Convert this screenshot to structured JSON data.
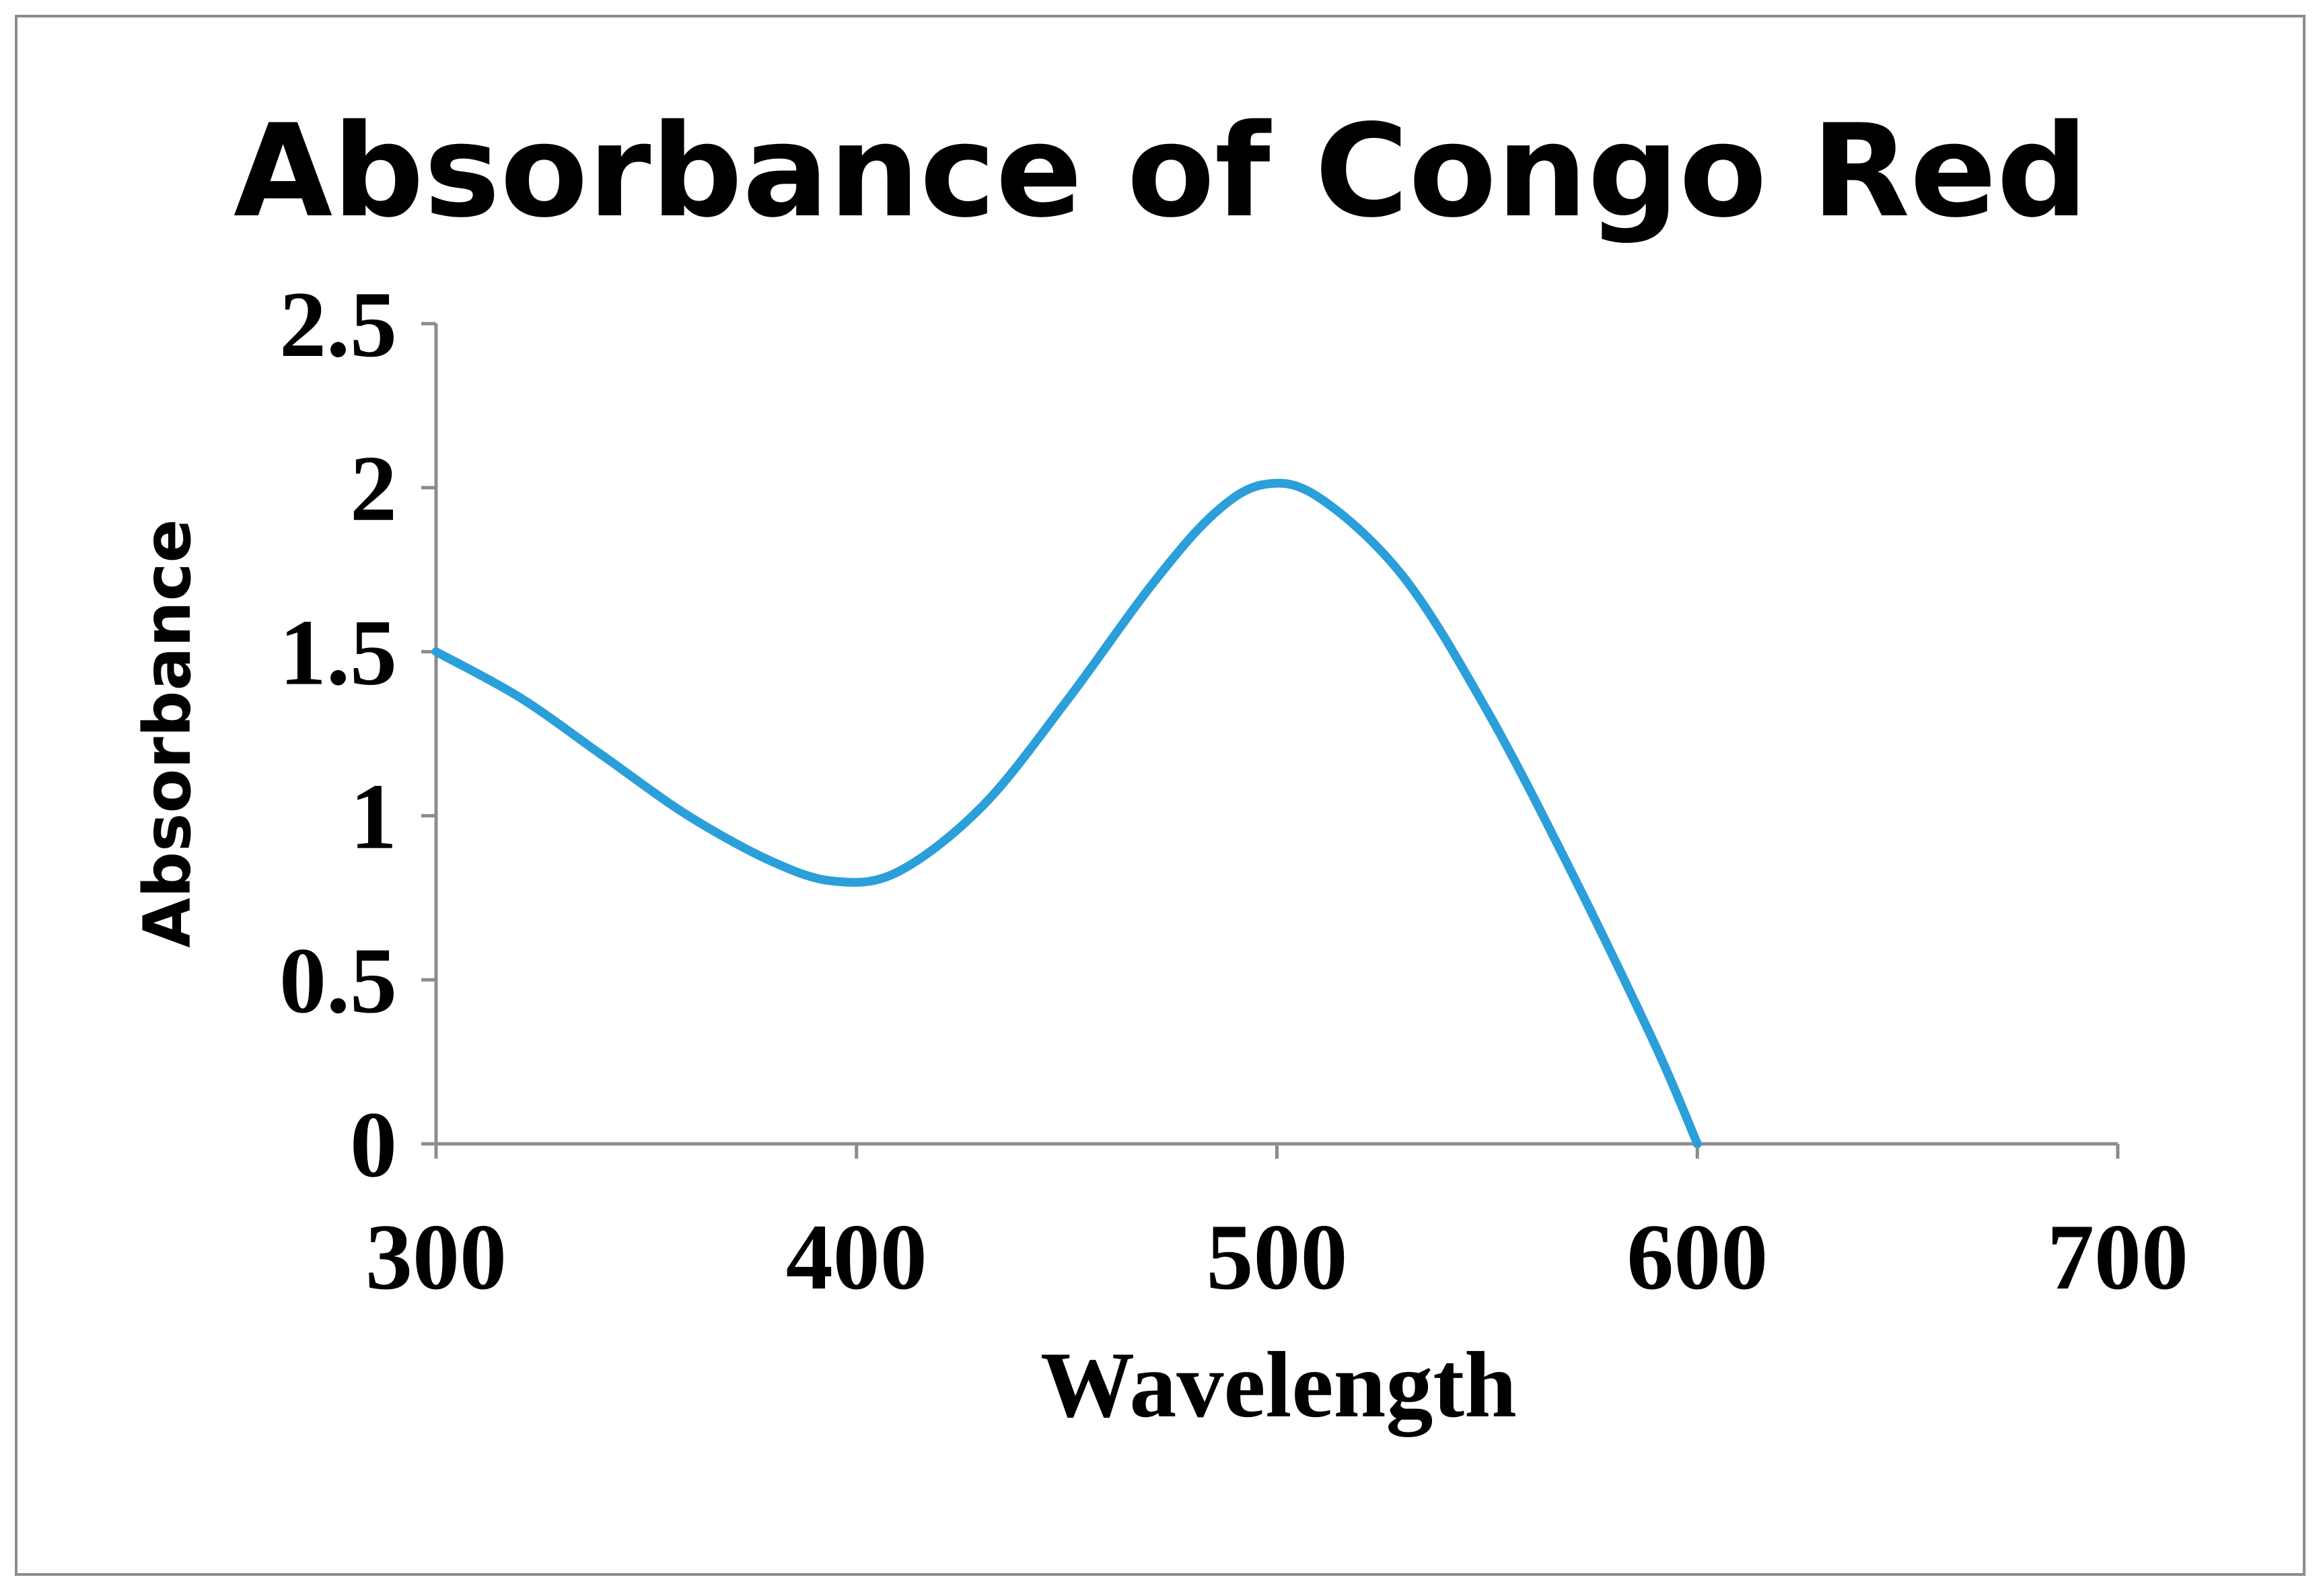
{
  "chart_data": {
    "type": "line",
    "title": "Absorbance of Congo Red",
    "xlabel": "Wavelength",
    "ylabel": "Absorbance",
    "xlim": [
      300,
      700
    ],
    "ylim": [
      0,
      2.5
    ],
    "x_ticks": [
      "300",
      "400",
      "500",
      "600",
      "700"
    ],
    "y_ticks": [
      "0",
      "0.5",
      "1",
      "1.5",
      "2",
      "2.5"
    ],
    "grid": false,
    "legend": "none",
    "series": [
      {
        "color": "#2b9fd9",
        "x": [
          300,
          320,
          340,
          360,
          380,
          395,
          410,
          430,
          450,
          470,
          485,
          497,
          510,
          530,
          550,
          570,
          590,
          600
        ],
        "y": [
          1.5,
          1.36,
          1.18,
          1.0,
          0.86,
          0.8,
          0.83,
          1.03,
          1.35,
          1.7,
          1.92,
          2.01,
          1.97,
          1.73,
          1.32,
          0.83,
          0.3,
          0.0
        ]
      }
    ]
  }
}
